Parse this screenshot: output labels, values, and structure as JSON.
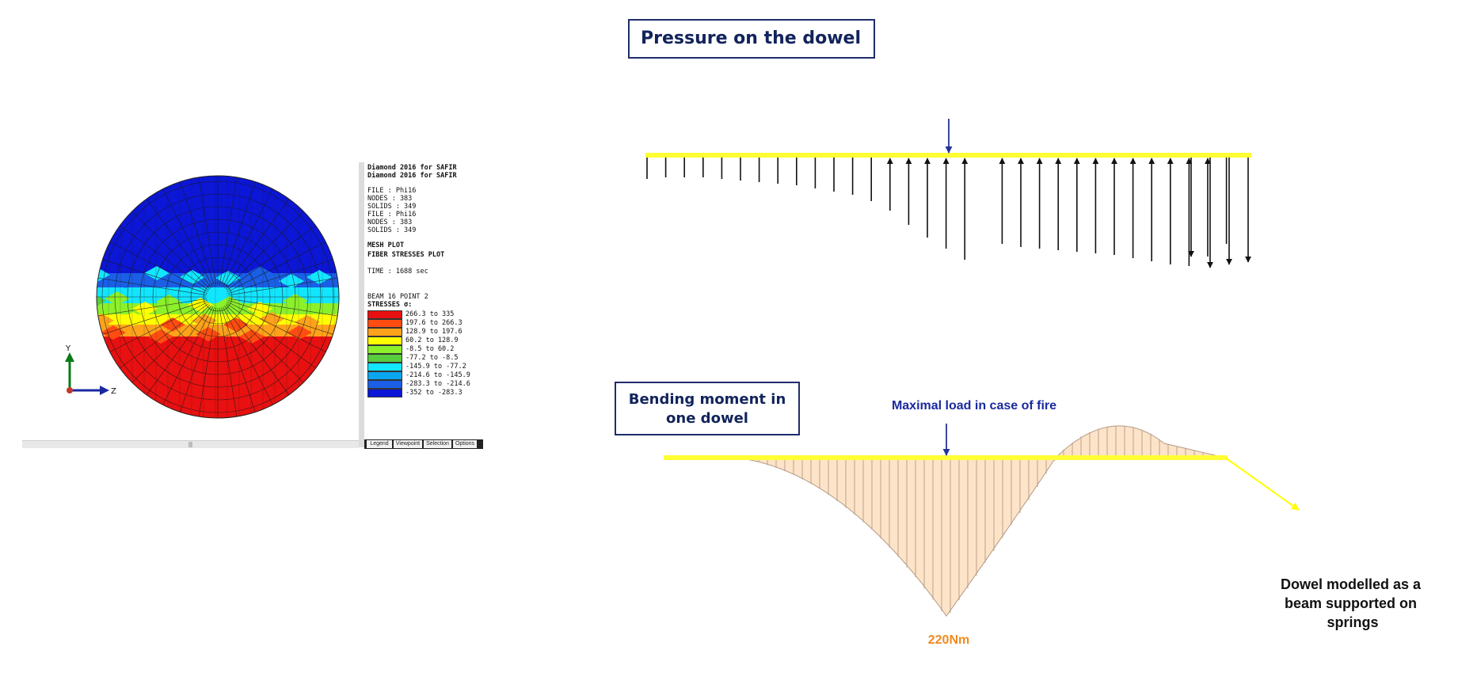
{
  "titles": {
    "pressure": "Pressure on the dowel",
    "bending": "Bending moment in one dowel",
    "max_load": "Maximal load in case of fire",
    "moment_value": "220Nm",
    "dowel_model": "Dowel modelled as a beam supported on springs"
  },
  "axes": {
    "y": "Y",
    "z": "Z"
  },
  "legend": {
    "lines": [
      "Diamond 2016 for SAFIR",
      "Diamond 2016 for SAFIR",
      "FILE : Phi16",
      "NODES : 383",
      "SOLIDS : 349",
      "FILE : Phi16",
      "NODES : 383",
      "SOLIDS : 349",
      "MESH PLOT",
      "FIBER STRESSES PLOT",
      "TIME : 1688 sec",
      "BEAM 16 POINT 2",
      "STRESSES σ:"
    ],
    "ranges": [
      "266.3 to 335",
      "197.6 to 266.3",
      "128.9 to 197.6",
      "60.2 to 128.9",
      "-8.5 to 60.2",
      "-77.2 to -8.5",
      "-145.9 to -77.2",
      "-214.6 to -145.9",
      "-283.3 to -214.6",
      "-352 to -283.3"
    ],
    "colors": [
      "#e81010",
      "#ff4d12",
      "#ffa21b",
      "#ffff00",
      "#8cf02a",
      "#57cc3c",
      "#12e6ff",
      "#0aa6f0",
      "#1a5fe6",
      "#0b16d6"
    ],
    "tabs": [
      "Legend",
      "Viewpoint",
      "Selection",
      "Options"
    ]
  },
  "colors": {
    "accent_yellow": "#ffff33",
    "title_border": "#1f2d6a",
    "moment_fill": "#fde4c8",
    "moment_value": "#f08a1e",
    "label_blue": "#1a2aa0"
  }
}
